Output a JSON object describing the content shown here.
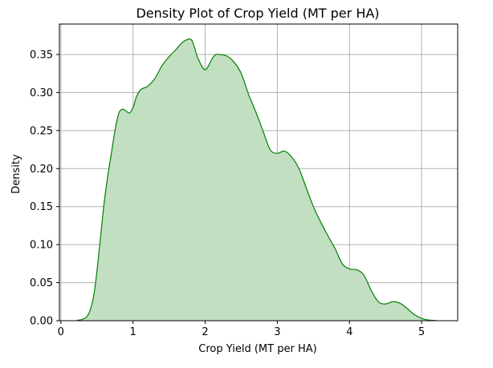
{
  "chart_data": {
    "type": "area",
    "title": "Density Plot of Crop Yield (MT per HA)",
    "xlabel": "Crop Yield (MT per HA)",
    "ylabel": "Density",
    "xlim": [
      -0.02,
      5.5
    ],
    "ylim": [
      0.0,
      0.39
    ],
    "x_ticks": [
      0,
      1,
      2,
      3,
      4,
      5
    ],
    "y_ticks": [
      0.0,
      0.05,
      0.1,
      0.15,
      0.2,
      0.25,
      0.3,
      0.35
    ],
    "x_tick_labels": [
      "0",
      "1",
      "2",
      "3",
      "4",
      "5"
    ],
    "y_tick_labels": [
      "0.00",
      "0.05",
      "0.10",
      "0.15",
      "0.20",
      "0.25",
      "0.30",
      "0.35"
    ],
    "grid": true,
    "line_color": "#008000",
    "fill_color": "#c2dfc2",
    "series": [
      {
        "x": [
          0.22,
          0.3,
          0.38,
          0.45,
          0.5,
          0.55,
          0.6,
          0.65,
          0.7,
          0.75,
          0.8,
          0.85,
          0.9,
          0.95,
          1.0,
          1.05,
          1.1,
          1.15,
          1.2,
          1.3,
          1.4,
          1.5,
          1.6,
          1.7,
          1.8,
          1.85,
          1.9,
          2.0,
          2.1,
          2.15,
          2.2,
          2.3,
          2.4,
          2.5,
          2.6,
          2.7,
          2.8,
          2.9,
          3.0,
          3.1,
          3.2,
          3.3,
          3.4,
          3.5,
          3.6,
          3.7,
          3.8,
          3.9,
          4.0,
          4.1,
          4.2,
          4.3,
          4.4,
          4.5,
          4.6,
          4.7,
          4.8,
          4.9,
          5.0,
          5.1,
          5.2
        ],
        "y": [
          0.0005,
          0.002,
          0.008,
          0.03,
          0.065,
          0.11,
          0.155,
          0.19,
          0.22,
          0.25,
          0.272,
          0.278,
          0.276,
          0.273,
          0.28,
          0.295,
          0.303,
          0.306,
          0.308,
          0.318,
          0.335,
          0.347,
          0.357,
          0.367,
          0.37,
          0.36,
          0.345,
          0.33,
          0.345,
          0.35,
          0.35,
          0.348,
          0.34,
          0.325,
          0.298,
          0.275,
          0.25,
          0.225,
          0.22,
          0.223,
          0.215,
          0.2,
          0.175,
          0.15,
          0.13,
          0.112,
          0.095,
          0.075,
          0.068,
          0.067,
          0.06,
          0.04,
          0.025,
          0.022,
          0.025,
          0.023,
          0.016,
          0.008,
          0.003,
          0.0008,
          0.0002
        ]
      }
    ]
  }
}
